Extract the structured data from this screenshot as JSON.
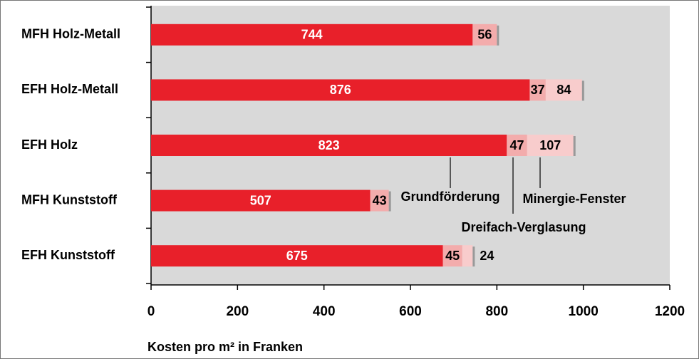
{
  "chart_data": {
    "type": "stacked-bar-horizontal",
    "categories": [
      "MFH Holz-Metall",
      "EFH Holz-Metall",
      "EFH Holz",
      "MFH Kunststoff",
      "EFH Kunststoff"
    ],
    "series": [
      {
        "name": "Grundförderung",
        "color": "#e8202a",
        "values": [
          744,
          876,
          823,
          507,
          675
        ]
      },
      {
        "name": "Dreifach-Verglasung",
        "color": "#f3acac",
        "values": [
          56,
          37,
          47,
          43,
          45
        ]
      },
      {
        "name": "Minergie-Fenster",
        "color": "#f8cccc",
        "values": [
          null,
          84,
          107,
          null,
          24
        ]
      }
    ],
    "xlim": [
      0,
      1200
    ],
    "xticks": [
      0,
      200,
      400,
      600,
      800,
      1000,
      1200
    ],
    "xlabel": "Kosten pro m² in Franken"
  }
}
